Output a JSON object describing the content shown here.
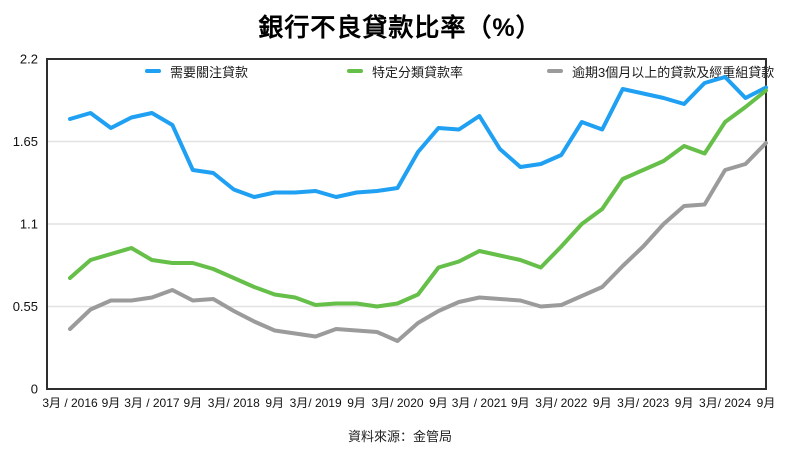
{
  "title": "銀行不良貸款比率（%）",
  "legend": [
    {
      "label": "需要關注貸款",
      "color": "#1FA0F2"
    },
    {
      "label": "特定分類貸款率",
      "color": "#65BF48"
    },
    {
      "label": "逾期3個月以上的貸款及經重組貸款",
      "color": "#9B9B9B"
    }
  ],
  "source": "資料來源：金管局",
  "chart_data": {
    "type": "line",
    "title": "銀行不良貸款比率（%）",
    "ylabel": "",
    "xlabel": "",
    "ylim": [
      0,
      2.2
    ],
    "y_ticks": [
      0,
      0.55,
      1.1,
      1.65,
      2.2
    ],
    "grid": "horizontal",
    "legend_position": "top",
    "x_frequency": "quarterly, labels shown every second point (March and September)",
    "x_tick_labels": [
      "3月 / 2016",
      "9月",
      "3月 / 2017",
      "9月",
      "3月/ 2018",
      "9月",
      "3月/ 2019",
      "9月",
      "3月/ 2020",
      "9月",
      "3月 / 2021",
      "9月",
      "3月/ 2022",
      "9月",
      "3月/ 2023",
      "9月",
      "3月/ 2024",
      "9月"
    ],
    "x": [
      "2016Q1",
      "2016Q2",
      "2016Q3",
      "2016Q4",
      "2017Q1",
      "2017Q2",
      "2017Q3",
      "2017Q4",
      "2018Q1",
      "2018Q2",
      "2018Q3",
      "2018Q4",
      "2019Q1",
      "2019Q2",
      "2019Q3",
      "2019Q4",
      "2020Q1",
      "2020Q2",
      "2020Q3",
      "2020Q4",
      "2021Q1",
      "2021Q2",
      "2021Q3",
      "2021Q4",
      "2022Q1",
      "2022Q2",
      "2022Q3",
      "2022Q4",
      "2023Q1",
      "2023Q2",
      "2023Q3",
      "2023Q4",
      "2024Q1",
      "2024Q2",
      "2024Q3"
    ],
    "series": [
      {
        "name": "需要關注貸款",
        "color": "#1FA0F2",
        "values": [
          1.8,
          1.84,
          1.74,
          1.81,
          1.84,
          1.76,
          1.46,
          1.44,
          1.33,
          1.28,
          1.31,
          1.31,
          1.32,
          1.28,
          1.31,
          1.32,
          1.34,
          1.58,
          1.74,
          1.73,
          1.82,
          1.6,
          1.48,
          1.5,
          1.56,
          1.78,
          1.73,
          2.0,
          1.97,
          1.94,
          1.9,
          2.04,
          2.08,
          1.94,
          2.01
        ]
      },
      {
        "name": "特定分類貸款率",
        "color": "#65BF48",
        "values": [
          0.74,
          0.86,
          0.9,
          0.94,
          0.86,
          0.84,
          0.84,
          0.8,
          0.74,
          0.68,
          0.63,
          0.61,
          0.56,
          0.57,
          0.57,
          0.55,
          0.57,
          0.63,
          0.81,
          0.85,
          0.92,
          0.89,
          0.86,
          0.81,
          0.95,
          1.1,
          1.2,
          1.4,
          1.46,
          1.52,
          1.62,
          1.57,
          1.78,
          1.88,
          1.99
        ]
      },
      {
        "name": "逾期3個月以上的貸款及經重組貸款",
        "color": "#9B9B9B",
        "values": [
          0.4,
          0.53,
          0.59,
          0.59,
          0.61,
          0.66,
          0.59,
          0.6,
          0.52,
          0.45,
          0.39,
          0.37,
          0.35,
          0.4,
          0.39,
          0.38,
          0.32,
          0.44,
          0.52,
          0.58,
          0.61,
          0.6,
          0.59,
          0.55,
          0.56,
          0.62,
          0.68,
          0.82,
          0.95,
          1.1,
          1.22,
          1.23,
          1.46,
          1.5,
          1.64
        ]
      }
    ],
    "style": {
      "line_width": 4,
      "grid_color": "#e2e2e2",
      "border_color": "#2e2e2e",
      "tick_color": "#111111"
    }
  }
}
